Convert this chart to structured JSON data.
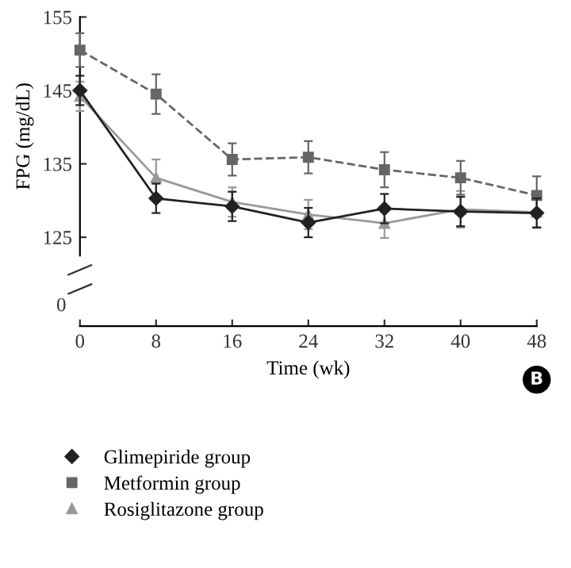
{
  "chart_data": {
    "type": "line",
    "ylabel": "FPG (mg/dL)",
    "xlabel": "Time (wk)",
    "x": [
      0,
      8,
      16,
      24,
      32,
      40,
      48
    ],
    "xlim": [
      0,
      48
    ],
    "xticks": [
      0,
      8,
      16,
      24,
      32,
      40,
      48
    ],
    "ylim": [
      122.5,
      155
    ],
    "yticks": [
      125,
      135,
      145,
      155
    ],
    "legend": "bottom",
    "grid": false,
    "series": [
      {
        "name": "Glimepiride group",
        "color": "#222222",
        "marker": "diamond",
        "line_style": "solid",
        "values": [
          145,
          130.3,
          129.2,
          127.0,
          128.9,
          128.5,
          128.3
        ],
        "errors": [
          2,
          2,
          2,
          2,
          2,
          2,
          2
        ]
      },
      {
        "name": "Metformin group",
        "color": "#666666",
        "marker": "square",
        "line_style": "dashed",
        "values": [
          150.5,
          144.5,
          135.6,
          135.9,
          134.2,
          133.1,
          130.7
        ],
        "errors": [
          2.3,
          2.7,
          2.2,
          2.2,
          2.4,
          2.3,
          2.6
        ]
      },
      {
        "name": "Rosiglitazone group",
        "color": "#999999",
        "marker": "triangle",
        "line_style": "solid",
        "values": [
          144.2,
          133.1,
          129.8,
          128.1,
          126.9,
          128.8,
          128.4
        ],
        "errors": [
          2,
          2.5,
          2,
          2,
          2,
          2.5,
          2
        ]
      }
    ],
    "annotations": [
      "0",
      "B"
    ]
  }
}
